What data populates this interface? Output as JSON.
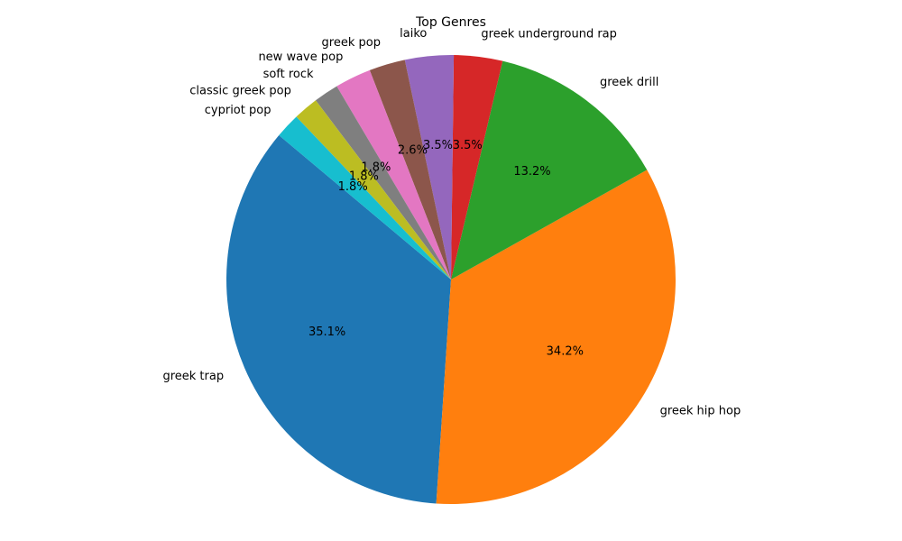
{
  "chart_data": {
    "type": "pie",
    "title": "Top Genres",
    "start_angle_deg": 140,
    "direction": "counterclockwise",
    "legend": "none",
    "slices": [
      {
        "label": "greek trap",
        "value": 35.1,
        "pct_text": "35.1%",
        "color": "#1f77b4"
      },
      {
        "label": "greek hip hop",
        "value": 34.2,
        "pct_text": "34.2%",
        "color": "#ff7f0e"
      },
      {
        "label": "greek drill",
        "value": 13.2,
        "pct_text": "13.2%",
        "color": "#2ca02c"
      },
      {
        "label": "greek underground rap",
        "value": 3.5,
        "pct_text": "3.5%",
        "color": "#d62728"
      },
      {
        "label": "laiko",
        "value": 3.5,
        "pct_text": "3.5%",
        "color": "#9467bd"
      },
      {
        "label": "greek pop",
        "value": 2.6,
        "pct_text": "2.6%",
        "color": "#8c564b"
      },
      {
        "label": "new wave pop",
        "value": 2.6,
        "pct_text": "",
        "color": "#e377c2"
      },
      {
        "label": "soft rock",
        "value": 1.8,
        "pct_text": "1.8%",
        "color": "#7f7f7f"
      },
      {
        "label": "classic greek pop",
        "value": 1.8,
        "pct_text": "1.8%",
        "color": "#bcbd22"
      },
      {
        "label": "cypriot pop",
        "value": 1.8,
        "pct_text": "1.8%",
        "color": "#17becf"
      }
    ]
  }
}
